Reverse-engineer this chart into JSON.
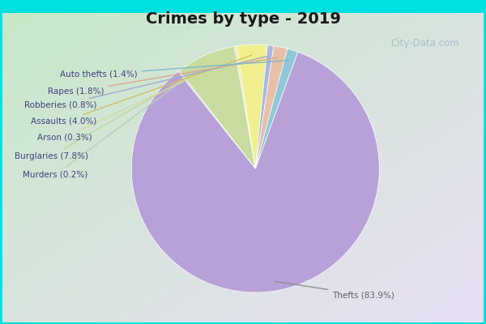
{
  "title": "Crimes by type - 2019",
  "slices": [
    {
      "label": "Thefts (83.9%)",
      "value": 83.9,
      "color": "#b8a0d8"
    },
    {
      "label": "Murders (0.2%)",
      "value": 0.2,
      "color": "#b8d0b8"
    },
    {
      "label": "Burglaries (7.8%)",
      "value": 7.8,
      "color": "#c8dca0"
    },
    {
      "label": "Arson (0.3%)",
      "value": 0.3,
      "color": "#e8e8c0"
    },
    {
      "label": "Assaults (4.0%)",
      "value": 4.0,
      "color": "#f0f090"
    },
    {
      "label": "Robberies (0.8%)",
      "value": 0.8,
      "color": "#a8b8e0"
    },
    {
      "label": "Rapes (1.8%)",
      "value": 1.8,
      "color": "#e8c0a8"
    },
    {
      "label": "Auto thefts (1.4%)",
      "value": 1.4,
      "color": "#90c8d8"
    }
  ],
  "bg_outer": "#00e0e0",
  "title_fontsize": 14,
  "watermark": "City-Data.com",
  "label_colors": {
    "Thefts (83.9%)": "#606060",
    "Murders (0.2%)": "#404080",
    "Burglaries (7.8%)": "#404080",
    "Arson (0.3%)": "#404080",
    "Assaults (4.0%)": "#404080",
    "Robberies (0.8%)": "#404080",
    "Rapes (1.8%)": "#404080",
    "Auto thefts (1.4%)": "#404080"
  },
  "line_colors": {
    "Thefts (83.9%)": "#909090",
    "Murders (0.2%)": "#b8d0b8",
    "Burglaries (7.8%)": "#c0d8a0",
    "Arson (0.3%)": "#d8d8a0",
    "Assaults (4.0%)": "#d0c060",
    "Robberies (0.8%)": "#a0a8d0",
    "Rapes (1.8%)": "#d8a890",
    "Auto thefts (1.4%)": "#80b8c8"
  }
}
